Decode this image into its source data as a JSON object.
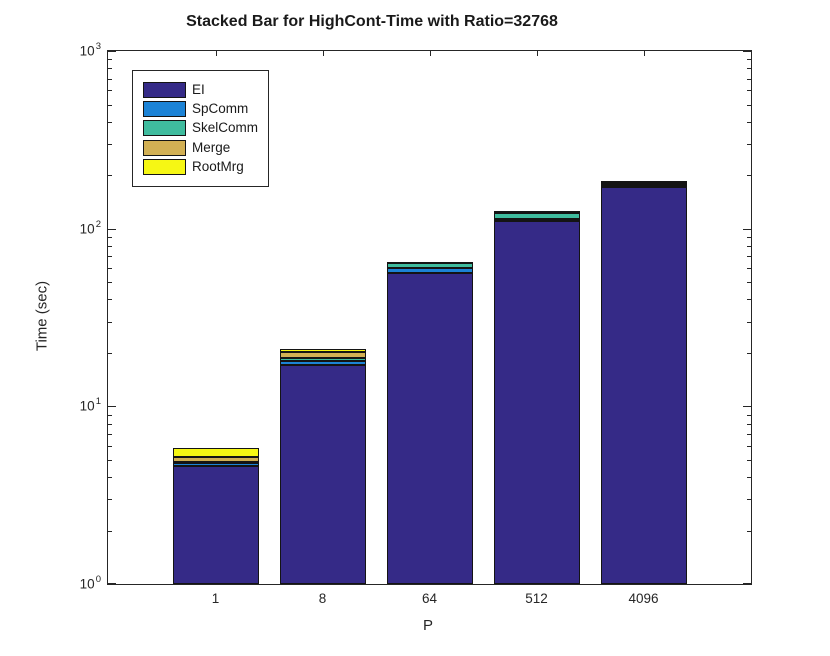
{
  "figure": {
    "background": "#ffffff",
    "axis_color": "#262626",
    "bar_edge_color": "#141414"
  },
  "chart_data": {
    "type": "bar",
    "stacked": true,
    "title": "Stacked Bar for HighCont-Time with Ratio=32768",
    "xlabel": "P",
    "ylabel": "Time (sec)",
    "y_scale": "log",
    "ylim": [
      1,
      1000
    ],
    "y_tick_labels": [
      "10^0",
      "10^1",
      "10^2",
      "10^3"
    ],
    "categories": [
      "1",
      "8",
      "64",
      "512",
      "4096"
    ],
    "series": [
      {
        "name": "EI",
        "color": "#352A87",
        "values": [
          4.6,
          17.1,
          56.0,
          111.0,
          171.0
        ]
      },
      {
        "name": "SpComm",
        "color": "#1C83D6",
        "values": [
          0.18,
          0.9,
          3.8,
          3.0,
          6.0
        ]
      },
      {
        "name": "SkelComm",
        "color": "#3FBC9E",
        "values": [
          0.06,
          0.7,
          4.2,
          9.0,
          5.0
        ]
      },
      {
        "name": "Merge",
        "color": "#D2B054",
        "values": [
          0.33,
          1.5,
          0.4,
          1.0,
          1.5
        ]
      },
      {
        "name": "RootMrg",
        "color": "#F6F714",
        "values": [
          0.63,
          0.8,
          0.5,
          1.0,
          1.5
        ]
      }
    ],
    "stack_totals": [
      5.8,
      21.0,
      64.9,
      125.0,
      185.0
    ],
    "legend_position": "upper-left",
    "grid": false
  }
}
